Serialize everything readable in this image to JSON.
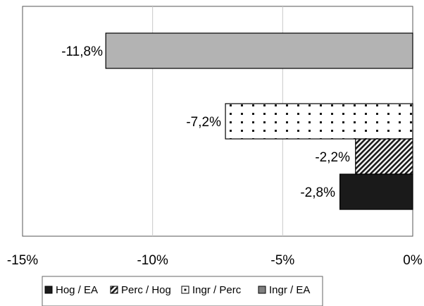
{
  "chart_data": {
    "type": "bar",
    "orientation": "horizontal",
    "xlim": [
      -15,
      0
    ],
    "xticks": [
      -15,
      -10,
      -5,
      0
    ],
    "xtick_labels": [
      "-15%",
      "-10%",
      "-5%",
      "0%"
    ],
    "grid": "vertical",
    "legend_position": "bottom",
    "series": [
      {
        "name": "Hog / EA",
        "value": -2.8,
        "label": "-2,8%",
        "fill": "solid",
        "color": "#1a1a1a"
      },
      {
        "name": "Perc / Hog",
        "value": -2.2,
        "label": "-2,2%",
        "fill": "diagonal-stripes",
        "color": "#1a1a1a"
      },
      {
        "name": "Ingr / Perc",
        "value": -7.2,
        "label": "-7,2%",
        "fill": "dots",
        "color": "#1a1a1a"
      },
      {
        "name": "Ingr / EA",
        "value": -11.8,
        "label": "-11,8%",
        "fill": "solid",
        "color": "#b3b3b3"
      }
    ]
  }
}
